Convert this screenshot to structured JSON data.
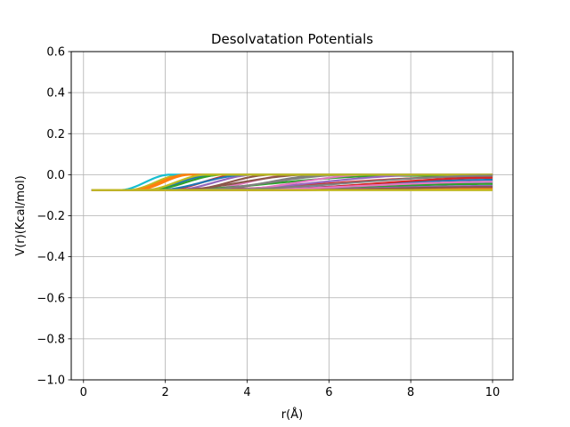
{
  "chart_data": {
    "type": "line",
    "title": "Desolvatation Potentials",
    "xlabel": "r(Å)",
    "ylabel": "V(r)(Kcal/mol)",
    "xlim": [
      -0.3,
      10.5
    ],
    "ylim": [
      -1.0,
      0.6
    ],
    "xticks": [
      0,
      2,
      4,
      6,
      8,
      10
    ],
    "xtick_labels": [
      "0",
      "2",
      "4",
      "6",
      "8",
      "10"
    ],
    "yticks": [
      -1.0,
      -0.8,
      -0.6,
      -0.4,
      -0.2,
      0.0,
      0.2,
      0.4,
      0.6
    ],
    "ytick_labels": [
      "−1.0",
      "−0.8",
      "−0.6",
      "−0.4",
      "−0.2",
      "0.0",
      "0.2",
      "0.4",
      "0.6"
    ],
    "grid": true,
    "legend": "none",
    "x_range": [
      0.2,
      10
    ],
    "y_min_value": -0.075,
    "series": [
      {
        "color": "#1f77b4",
        "rise_start": 1.5,
        "rise_end": 3.2,
        "end_value": 0.0
      },
      {
        "color": "#ff7f0e",
        "rise_start": 1.3,
        "rise_end": 2.6,
        "end_value": 0.0
      },
      {
        "color": "#2ca02c",
        "rise_start": 1.6,
        "rise_end": 3.4,
        "end_value": 0.0
      },
      {
        "color": "#d62728",
        "rise_start": 2.0,
        "rise_end": 3.8,
        "end_value": 0.0
      },
      {
        "color": "#9467bd",
        "rise_start": 2.2,
        "rise_end": 4.2,
        "end_value": 0.0
      },
      {
        "color": "#8c564b",
        "rise_start": 2.5,
        "rise_end": 4.6,
        "end_value": 0.0
      },
      {
        "color": "#e377c2",
        "rise_start": 2.8,
        "rise_end": 5.2,
        "end_value": 0.0
      },
      {
        "color": "#7f7f7f",
        "rise_start": 3.0,
        "rise_end": 6.0,
        "end_value": 0.0
      },
      {
        "color": "#bcbd22",
        "rise_start": 1.1,
        "rise_end": 2.4,
        "end_value": 0.0
      },
      {
        "color": "#17becf",
        "rise_start": 0.9,
        "rise_end": 2.1,
        "end_value": 0.0
      },
      {
        "color": "#1f77b4",
        "rise_start": 1.8,
        "rise_end": 4.0,
        "end_value": 0.0
      },
      {
        "color": "#ff7f0e",
        "rise_start": 1.2,
        "rise_end": 2.5,
        "end_value": 0.0
      },
      {
        "color": "#2ca02c",
        "rise_start": 2.0,
        "rise_end": 7.5,
        "end_value": -0.005
      },
      {
        "color": "#d62728",
        "rise_start": 2.5,
        "rise_end": 9.5,
        "end_value": -0.01
      },
      {
        "color": "#9467bd",
        "rise_start": 3.0,
        "rise_end": 8.5,
        "end_value": 0.0
      },
      {
        "color": "#8c564b",
        "rise_start": 2.2,
        "rise_end": 5.5,
        "end_value": 0.0
      },
      {
        "color": "#e377c2",
        "rise_start": 3.5,
        "rise_end": 7.0,
        "end_value": 0.0
      },
      {
        "color": "#7f7f7f",
        "rise_start": 2.6,
        "rise_end": 6.5,
        "end_value": 0.0
      },
      {
        "color": "#bcbd22",
        "rise_start": 1.5,
        "rise_end": 3.0,
        "end_value": 0.0
      },
      {
        "color": "#17becf",
        "rise_start": 3.0,
        "rise_end": 10.0,
        "end_value": -0.04
      },
      {
        "color": "#1f77b4",
        "rise_start": 3.5,
        "rise_end": 10.0,
        "end_value": -0.025
      },
      {
        "color": "#2ca02c",
        "rise_start": 4.0,
        "rise_end": 10.0,
        "end_value": -0.045
      },
      {
        "color": "#d62728",
        "rise_start": 4.0,
        "rise_end": 10.0,
        "end_value": -0.015
      },
      {
        "color": "#9467bd",
        "rise_start": 4.5,
        "rise_end": 10.0,
        "end_value": -0.055
      },
      {
        "color": "#ff7f0e",
        "rise_start": 5.0,
        "rise_end": 10.0,
        "end_value": -0.065
      },
      {
        "color": "#8c564b",
        "rise_start": 5.0,
        "rise_end": 10.0,
        "end_value": -0.06
      },
      {
        "color": "#e377c2",
        "rise_start": 3.5,
        "rise_end": 10.0,
        "end_value": -0.035
      },
      {
        "color": "#7f7f7f",
        "rise_start": 3.0,
        "rise_end": 10.0,
        "end_value": -0.005
      },
      {
        "color": "#ff7f0e",
        "rise_start": 10.0,
        "rise_end": 10.5,
        "end_value": -0.075
      },
      {
        "color": "#bcbd22",
        "rise_start": 10.0,
        "rise_end": 10.5,
        "end_value": -0.075
      }
    ]
  }
}
